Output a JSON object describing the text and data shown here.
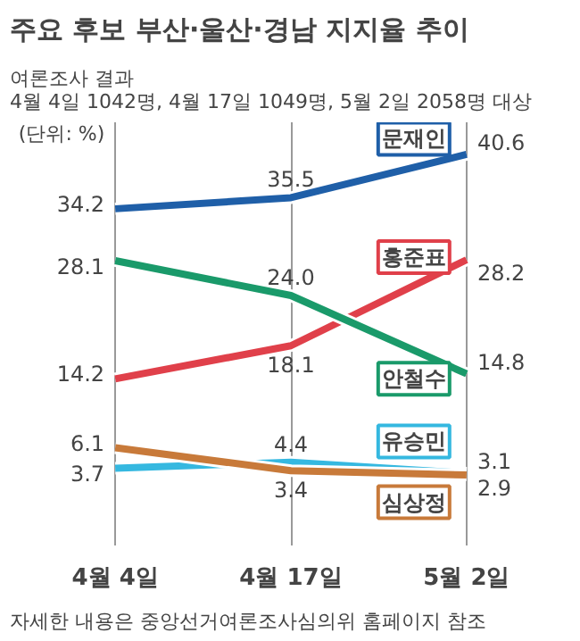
{
  "chart_data": {
    "type": "line",
    "title": "주요 후보 부산·울산·경남 지지율 추이",
    "subtitle": "여론조사 결과\n4월 4일 1042명, 4월 17일 1049명, 5월 2일 2058명 대상",
    "categories": [
      "4월 4일",
      "4월 17일",
      "5월 2일"
    ],
    "series": [
      {
        "name": "문재인",
        "color": "#1f5fa8",
        "values": [
          34.2,
          35.5,
          40.6
        ],
        "value_labels": [
          "34.2",
          "35.5",
          "40.6"
        ]
      },
      {
        "name": "홍준표",
        "color": "#e0404a",
        "values": [
          14.2,
          18.1,
          28.2
        ],
        "value_labels": [
          "14.2",
          "18.1",
          "28.2"
        ]
      },
      {
        "name": "안철수",
        "color": "#1a9a6a",
        "values": [
          28.1,
          24.0,
          14.8
        ],
        "value_labels": [
          "28.1",
          "24.0",
          "14.8"
        ]
      },
      {
        "name": "유승민",
        "color": "#35b8e0",
        "values": [
          3.7,
          4.4,
          3.1
        ],
        "value_labels": [
          "3.7",
          "4.4",
          "3.1"
        ]
      },
      {
        "name": "심상정",
        "color": "#c87a3a",
        "values": [
          6.1,
          3.4,
          2.9
        ],
        "value_labels": [
          "6.1",
          "3.4",
          "2.9"
        ]
      }
    ],
    "grid": "x",
    "legend": false,
    "marker": "none",
    "line_style": "solid",
    "annotations": [
      "(단위: %)",
      "자세한 내용은 중앙선거여론조사심의위 홈페이지 참조"
    ]
  }
}
